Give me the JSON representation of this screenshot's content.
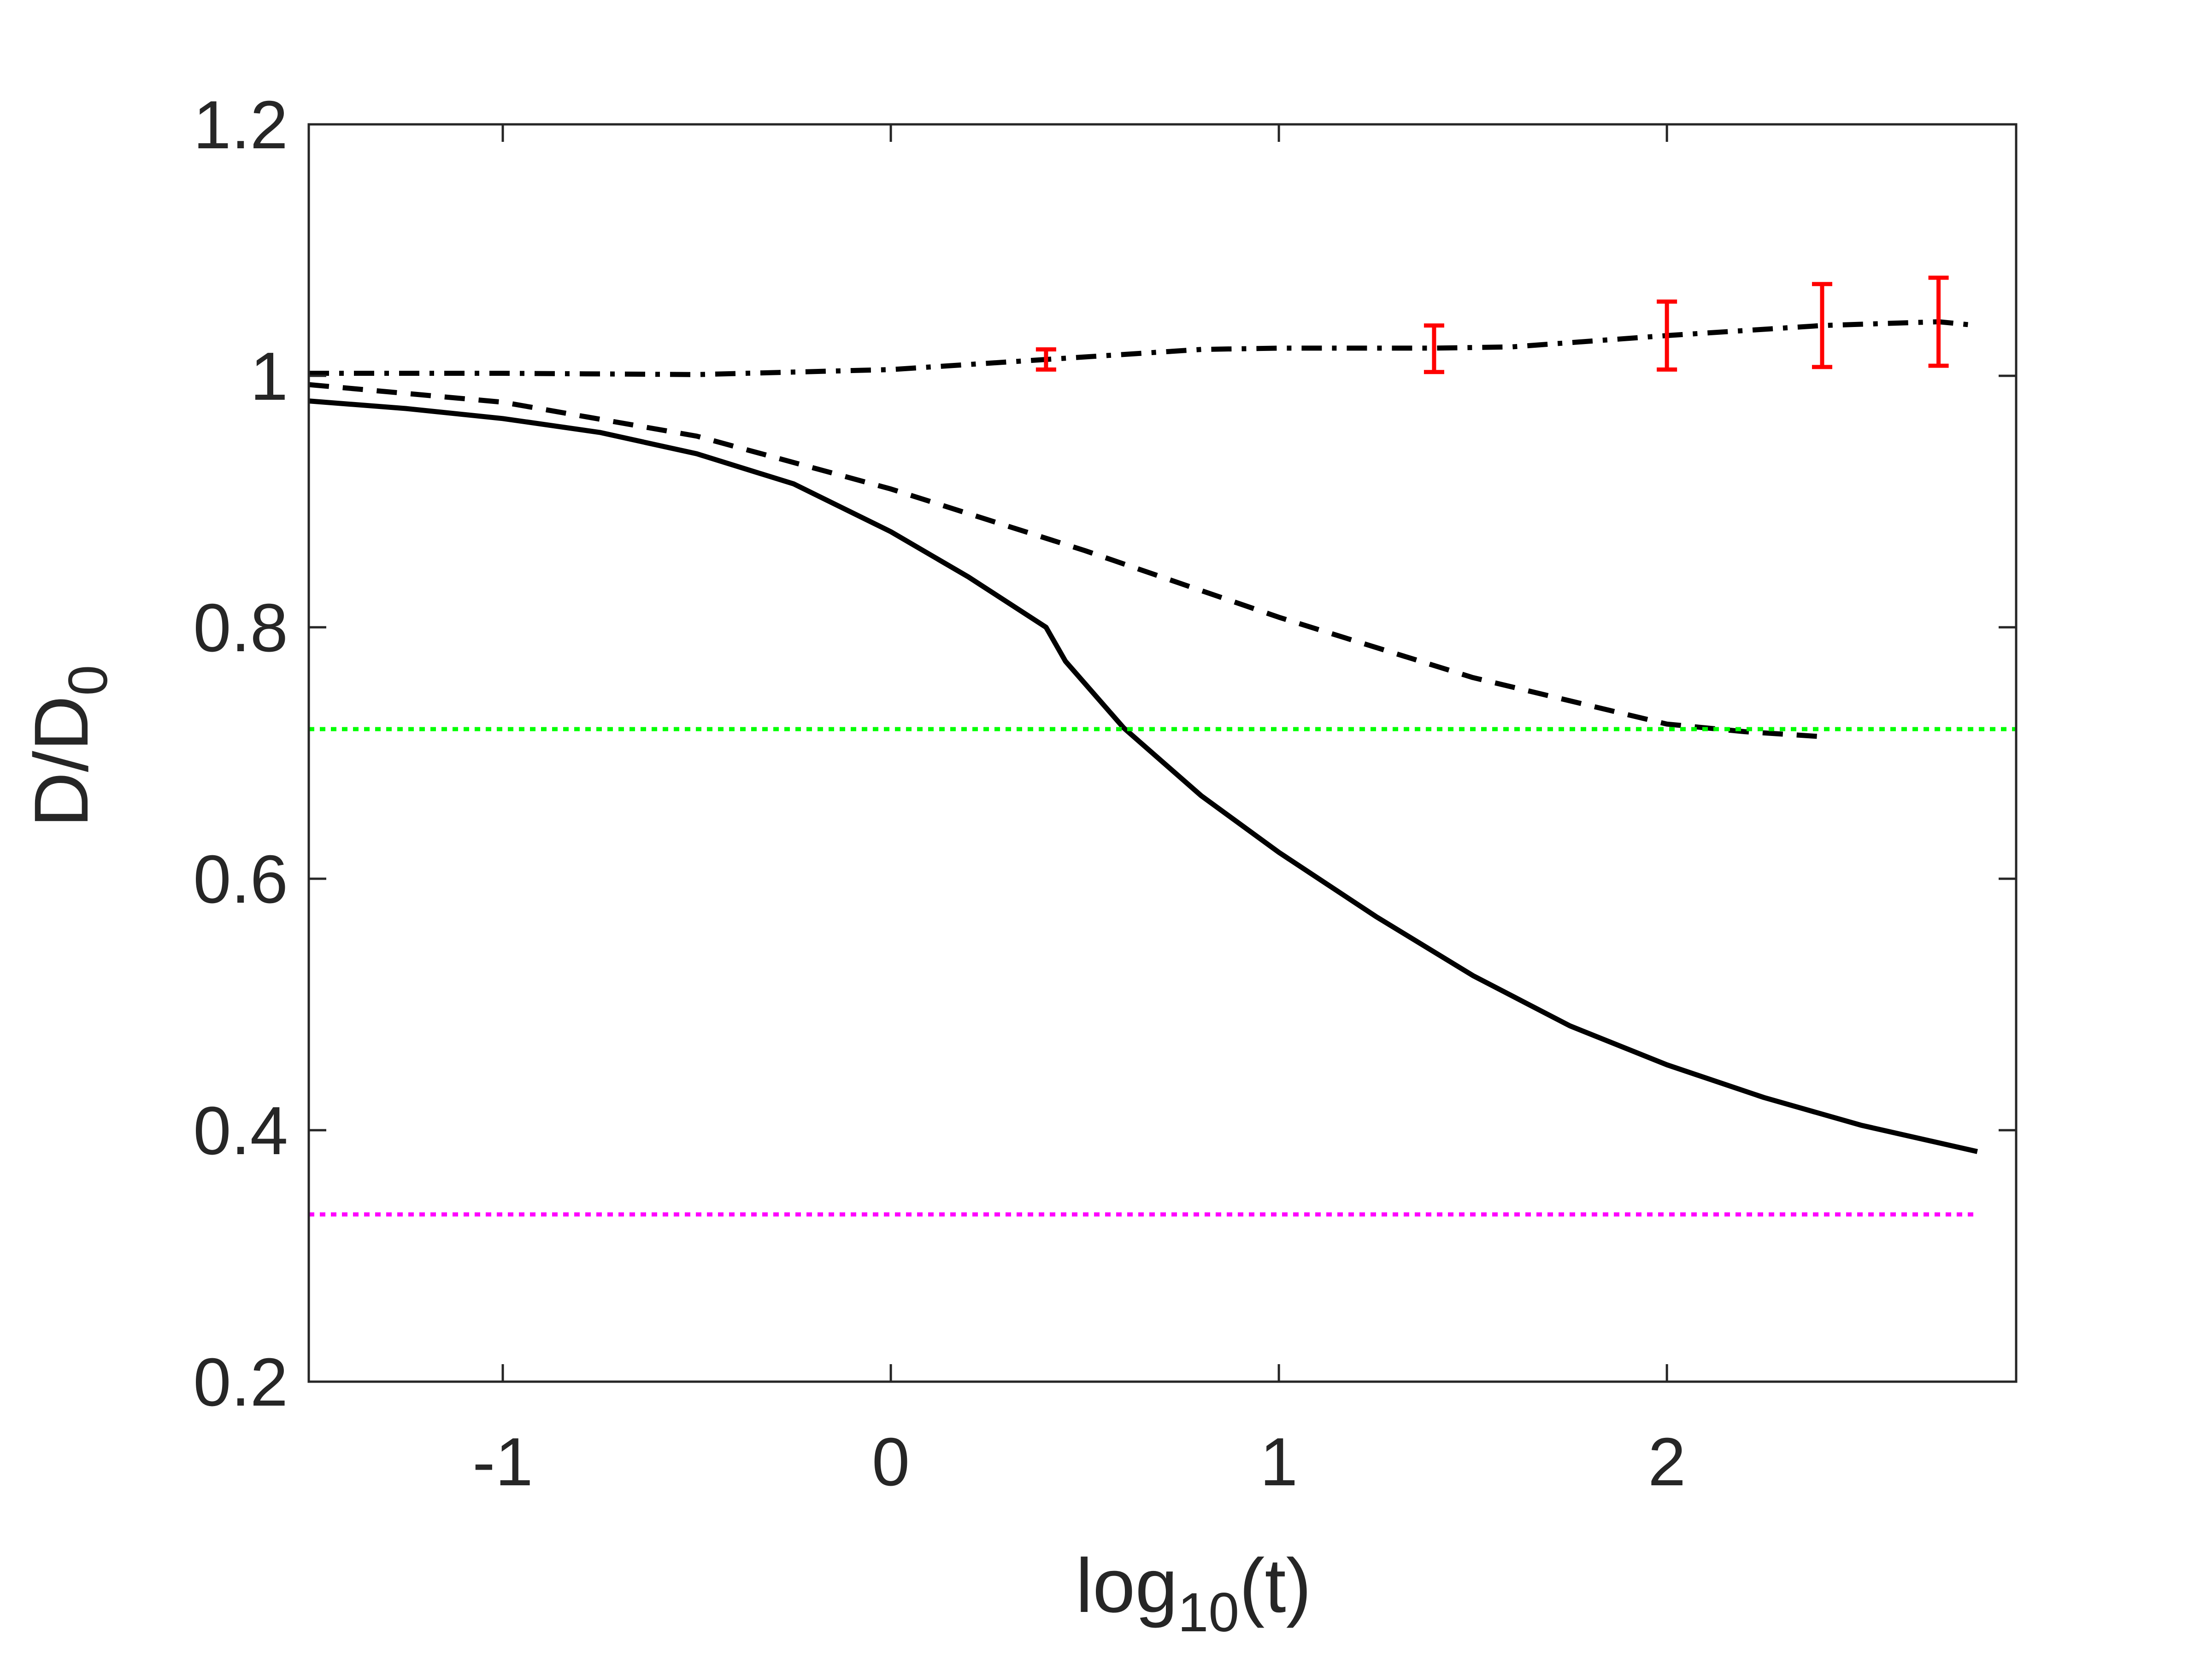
{
  "chart_data": {
    "type": "line",
    "xlabel": {
      "base": "log",
      "subscript": "10",
      "suffix": "(t)"
    },
    "ylabel": {
      "base": "D/D",
      "subscript": "0"
    },
    "xlim": [
      -1.5,
      2.9
    ],
    "ylim": [
      0.2,
      1.2
    ],
    "xticks": [
      -1,
      0,
      1,
      2
    ],
    "xtick_labels": [
      "-1",
      "0",
      "1",
      "2"
    ],
    "yticks": [
      0.2,
      0.4,
      0.6,
      0.8,
      1.0,
      1.2
    ],
    "ytick_labels": [
      "0.2",
      "0.4",
      "0.6",
      "0.8",
      "1",
      "1.2"
    ],
    "grid": false,
    "series": [
      {
        "name": "solid",
        "style": "solid",
        "color": "#000000",
        "x": [
          -1.5,
          -1.25,
          -1.0,
          -0.75,
          -0.5,
          -0.25,
          0.0,
          0.2,
          0.4,
          0.45,
          0.6,
          0.8,
          1.0,
          1.25,
          1.5,
          1.75,
          2.0,
          2.25,
          2.5,
          2.8
        ],
        "y": [
          0.98,
          0.974,
          0.966,
          0.955,
          0.938,
          0.914,
          0.876,
          0.84,
          0.8,
          0.773,
          0.72,
          0.666,
          0.621,
          0.57,
          0.523,
          0.483,
          0.452,
          0.426,
          0.404,
          0.383
        ]
      },
      {
        "name": "dashed",
        "style": "dashed",
        "color": "#000000",
        "x": [
          -1.5,
          -1.0,
          -0.5,
          0.0,
          0.5,
          1.0,
          1.5,
          2.0,
          2.2,
          2.4
        ],
        "y": [
          0.993,
          0.979,
          0.952,
          0.91,
          0.861,
          0.808,
          0.76,
          0.723,
          0.717,
          0.713
        ]
      },
      {
        "name": "dash-dot",
        "style": "dashdot",
        "color": "#000000",
        "x": [
          -1.5,
          -1.0,
          -0.5,
          0.0,
          0.4,
          0.8,
          1.0,
          1.4,
          1.6,
          2.0,
          2.4,
          2.7,
          2.8
        ],
        "y": [
          1.002,
          1.002,
          1.001,
          1.005,
          1.013,
          1.021,
          1.022,
          1.022,
          1.023,
          1.032,
          1.04,
          1.043,
          1.04
        ]
      },
      {
        "name": "green-reference",
        "style": "dotted",
        "color": "#00ff00",
        "x": [
          -1.5,
          2.9
        ],
        "y": [
          0.719,
          0.719
        ]
      },
      {
        "name": "magenta-reference",
        "style": "dotted",
        "color": "#ff00ff",
        "x": [
          -1.5,
          2.8
        ],
        "y": [
          0.333,
          0.333
        ]
      }
    ],
    "errorbars": {
      "color": "#ff0000",
      "points": [
        {
          "x": 0.4,
          "y": 1.013,
          "low": 1.005,
          "high": 1.021
        },
        {
          "x": 1.4,
          "y": 1.022,
          "low": 1.003,
          "high": 1.04
        },
        {
          "x": 2.0,
          "y": 1.032,
          "low": 1.005,
          "high": 1.059
        },
        {
          "x": 2.4,
          "y": 1.04,
          "low": 1.007,
          "high": 1.073
        },
        {
          "x": 2.7,
          "y": 1.043,
          "low": 1.008,
          "high": 1.078
        }
      ]
    }
  }
}
